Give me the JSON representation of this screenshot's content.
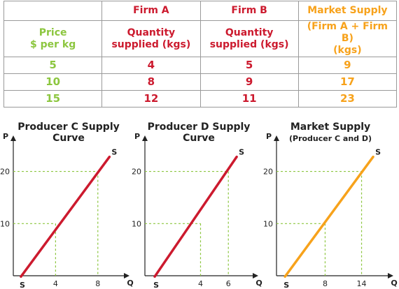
{
  "table": {
    "header": [
      "",
      "Firm A",
      "Firm B",
      "Market Supply"
    ],
    "subheader": [
      [
        "Price",
        "$ per kg"
      ],
      [
        "Quantity",
        "supplied (kgs)"
      ],
      [
        "Quantity",
        "supplied (kgs)"
      ],
      [
        "(Firm A + Firm B)",
        "(kgs)"
      ]
    ],
    "rows": [
      [
        "5",
        "4",
        "5",
        "9"
      ],
      [
        "10",
        "8",
        "9",
        "17"
      ],
      [
        "15",
        "12",
        "11",
        "23"
      ]
    ]
  },
  "colors": {
    "green": "#8cc63f",
    "red": "#cc1a2e",
    "orange": "#f7a21b",
    "axis": "#222222",
    "guide": "#8cc63f"
  },
  "chart_data": [
    {
      "type": "line",
      "title": "Producer C Supply",
      "subtitle": "Curve",
      "xlabel": "Q",
      "ylabel": "P",
      "color": "#cc1a2e",
      "line_start_label": "S",
      "line_end_label": "S",
      "x": [
        4,
        8
      ],
      "y": [
        10,
        20
      ],
      "xticks": [
        4,
        8
      ],
      "yticks": [
        10,
        20
      ],
      "xlim": [
        0,
        10.4
      ],
      "ylim": [
        0,
        25.7
      ],
      "line_from": [
        -0.6,
        -1.5
      ],
      "line_to": [
        9.1,
        22.8
      ],
      "guides": true
    },
    {
      "type": "line",
      "title": "Producer D Supply",
      "subtitle": "Curve",
      "xlabel": "Q",
      "ylabel": "P",
      "color": "#cc1a2e",
      "line_start_label": "S",
      "line_end_label": "S",
      "x": [
        4,
        6
      ],
      "y": [
        10,
        20
      ],
      "xticks": [
        4,
        6
      ],
      "yticks": [
        10,
        20
      ],
      "xlim": [
        0,
        7.7
      ],
      "ylim": [
        0,
        25.7
      ],
      "line_from": [
        -0.3,
        -1.5
      ],
      "line_to": [
        6.6,
        22.8
      ],
      "guides": true
    },
    {
      "type": "line",
      "title": "Market Supply",
      "subtitle": "(Producer C and D)",
      "xlabel": "Q",
      "ylabel": "P",
      "color": "#f7a21b",
      "line_start_label": "S",
      "line_end_label": "S",
      "x": [
        8,
        14
      ],
      "y": [
        10,
        20
      ],
      "xticks": [
        8,
        14
      ],
      "yticks": [
        10,
        20
      ],
      "xlim": [
        0,
        18.2
      ],
      "ylim": [
        0,
        25.7
      ],
      "line_from": [
        -0.9,
        -1.5
      ],
      "line_to": [
        15.9,
        22.8
      ],
      "guides": true
    }
  ]
}
